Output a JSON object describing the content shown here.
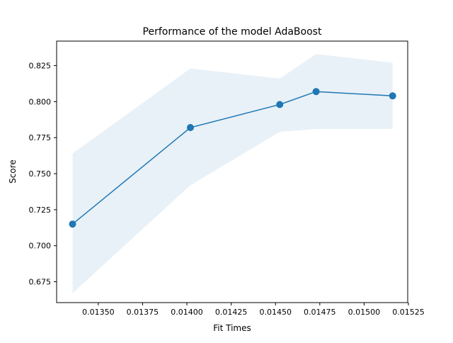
{
  "chart_data": {
    "type": "line",
    "title": "Performance of the model AdaBoost",
    "xlabel": "Fit Times",
    "ylabel": "Score",
    "xlim": [
      0.013265,
      0.015246
    ],
    "ylim": [
      0.6605,
      0.842
    ],
    "x_ticks": [
      0.0135,
      0.01375,
      0.014,
      0.01425,
      0.0145,
      0.01475,
      0.015,
      0.01525
    ],
    "x_tick_labels": [
      "0.01350",
      "0.01375",
      "0.01400",
      "0.01425",
      "0.01450",
      "0.01475",
      "0.01500",
      "0.01525"
    ],
    "y_ticks": [
      0.675,
      0.7,
      0.725,
      0.75,
      0.775,
      0.8,
      0.825
    ],
    "y_tick_labels": [
      "0.675",
      "0.700",
      "0.725",
      "0.750",
      "0.775",
      "0.800",
      "0.825"
    ],
    "grid": false,
    "series": [
      {
        "x": [
          0.013355,
          0.01402,
          0.014524,
          0.014729,
          0.015161
        ],
        "values": [
          0.715,
          0.782,
          0.798,
          0.807,
          0.804
        ],
        "lower": [
          0.667,
          0.742,
          0.779,
          0.781,
          0.781
        ],
        "upper": [
          0.764,
          0.823,
          0.816,
          0.833,
          0.827
        ],
        "color": "#1f77b4",
        "band_color": "#1f77b4"
      }
    ]
  }
}
